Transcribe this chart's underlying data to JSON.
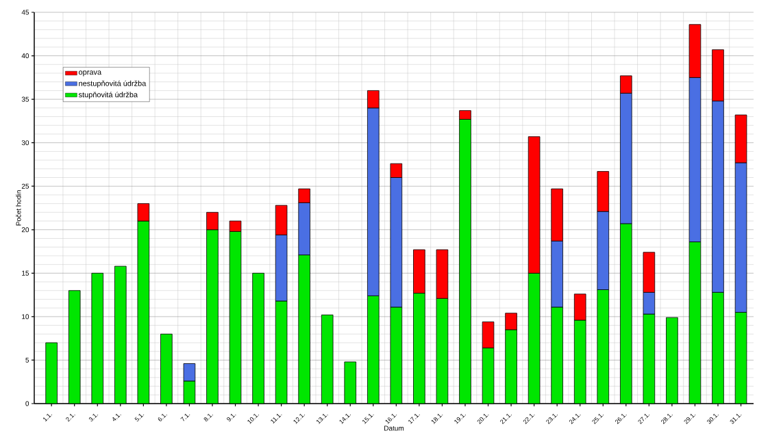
{
  "chart_data": {
    "type": "bar",
    "stacked": true,
    "xlabel": "Datum",
    "ylabel": "Počet hodin",
    "categories": [
      "1.1.",
      "2.1.",
      "3.1.",
      "4.1.",
      "5.1.",
      "6.1.",
      "7.1.",
      "8.1.",
      "9.1.",
      "10.1.",
      "11.1.",
      "12.1.",
      "13.1.",
      "14.1.",
      "15.1.",
      "16.1.",
      "17.1.",
      "18.1.",
      "19.1.",
      "20.1.",
      "21.1.",
      "22.1.",
      "23.1.",
      "24.1.",
      "25.1.",
      "26.1.",
      "27.1.",
      "28.1.",
      "29.1.",
      "30.1.",
      "31.1."
    ],
    "series": [
      {
        "name": "stupňovitá údržba",
        "color": "#00e600",
        "values": [
          7,
          13,
          15,
          15.8,
          21,
          8,
          2.6,
          20,
          19.8,
          15,
          11.8,
          17.1,
          10.2,
          4.8,
          12.4,
          11.1,
          12.7,
          12.1,
          32.7,
          6.4,
          8.5,
          15,
          11.1,
          9.6,
          13.1,
          20.7,
          10.3,
          9.9,
          18.6,
          12.8,
          10.5
        ]
      },
      {
        "name": "nestupňovitá údržba",
        "color": "#4a6fe3",
        "values": [
          null,
          null,
          null,
          null,
          null,
          null,
          2,
          null,
          null,
          null,
          7.6,
          6,
          null,
          null,
          21.6,
          14.9,
          null,
          null,
          null,
          null,
          null,
          null,
          7.6,
          null,
          9,
          15,
          2.5,
          null,
          18.9,
          22,
          17.2
        ]
      },
      {
        "name": "oprava",
        "color": "#ff0000",
        "values": [
          null,
          null,
          null,
          null,
          2,
          null,
          null,
          2,
          1.2,
          null,
          3.4,
          1.6,
          null,
          null,
          2,
          1.6,
          5,
          5.6,
          1,
          3,
          1.9,
          15.7,
          6,
          3,
          4.6,
          2,
          4.6,
          null,
          6.1,
          5.9,
          5.5
        ]
      }
    ],
    "ylim": [
      0,
      45
    ],
    "yticks": [
      0,
      5,
      10,
      15,
      20,
      25,
      30,
      35,
      40,
      45
    ],
    "grid": true,
    "legend": "top left"
  }
}
